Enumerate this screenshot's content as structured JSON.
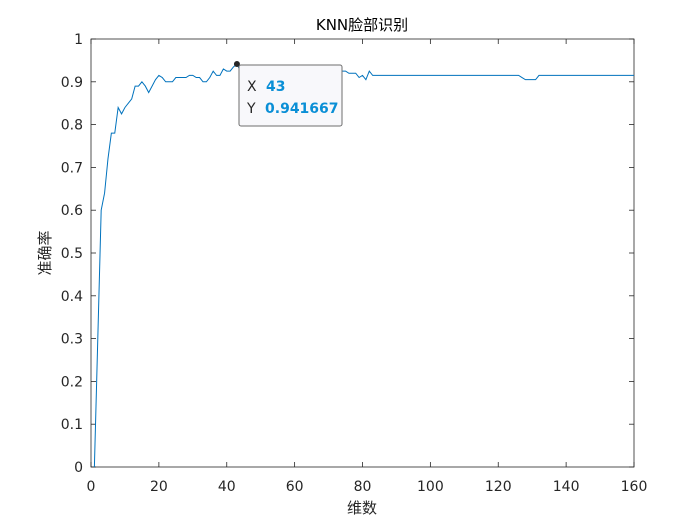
{
  "chart_data": {
    "type": "line",
    "title": "KNN脸部识别",
    "xlabel": "维数",
    "ylabel": "准确率",
    "xlim": [
      0,
      160
    ],
    "ylim": [
      0,
      1
    ],
    "xticks": [
      "0",
      "20",
      "40",
      "60",
      "80",
      "100",
      "120",
      "140",
      "160"
    ],
    "yticks": [
      "0",
      "0.1",
      "0.2",
      "0.3",
      "0.4",
      "0.5",
      "0.6",
      "0.7",
      "0.8",
      "0.9",
      "1"
    ],
    "grid": false,
    "line_color": "#0072BD",
    "series": [
      {
        "x": [
          1,
          2,
          3,
          4,
          5,
          6,
          7,
          8,
          9,
          10,
          11,
          12,
          13,
          14,
          15,
          16,
          17,
          18,
          19,
          20,
          21,
          22,
          23,
          24,
          25,
          26,
          27,
          28,
          29,
          30,
          31,
          32,
          33,
          34,
          35,
          36,
          37,
          38,
          39,
          40,
          41,
          42,
          43,
          44,
          45,
          46,
          47,
          48,
          49,
          50,
          51,
          52,
          53,
          54,
          55,
          56,
          57,
          58,
          59,
          60,
          61,
          62,
          63,
          64,
          65,
          66,
          67,
          68,
          69,
          70,
          71,
          72,
          73,
          74,
          75,
          76,
          77,
          78,
          79,
          80,
          81,
          82,
          83,
          84,
          90,
          100,
          110,
          120,
          125,
          126,
          127,
          128,
          129,
          130,
          131,
          132,
          140,
          150,
          160
        ],
        "y": [
          0.0,
          0.3,
          0.6,
          0.64,
          0.72,
          0.78,
          0.78,
          0.84,
          0.825,
          0.84,
          0.85,
          0.86,
          0.89,
          0.89,
          0.9,
          0.89,
          0.875,
          0.89,
          0.905,
          0.915,
          0.91,
          0.9,
          0.9,
          0.9,
          0.91,
          0.91,
          0.91,
          0.91,
          0.915,
          0.915,
          0.91,
          0.91,
          0.9,
          0.9,
          0.91,
          0.925,
          0.915,
          0.915,
          0.93,
          0.925,
          0.925,
          0.935,
          0.941667,
          0.925,
          0.92,
          0.925,
          0.925,
          0.92,
          0.92,
          0.925,
          0.925,
          0.925,
          0.925,
          0.925,
          0.925,
          0.925,
          0.925,
          0.925,
          0.925,
          0.925,
          0.925,
          0.925,
          0.925,
          0.925,
          0.925,
          0.925,
          0.925,
          0.925,
          0.925,
          0.925,
          0.925,
          0.925,
          0.925,
          0.925,
          0.925,
          0.92,
          0.92,
          0.92,
          0.91,
          0.915,
          0.905,
          0.925,
          0.915,
          0.915,
          0.915,
          0.915,
          0.915,
          0.915,
          0.915,
          0.915,
          0.91,
          0.905,
          0.905,
          0.905,
          0.905,
          0.915,
          0.915,
          0.915,
          0.915
        ]
      }
    ],
    "datatip": {
      "x_label": "X",
      "y_label": "Y",
      "x_value": "43",
      "y_value": "0.941667",
      "point": [
        43,
        0.941667
      ]
    }
  }
}
